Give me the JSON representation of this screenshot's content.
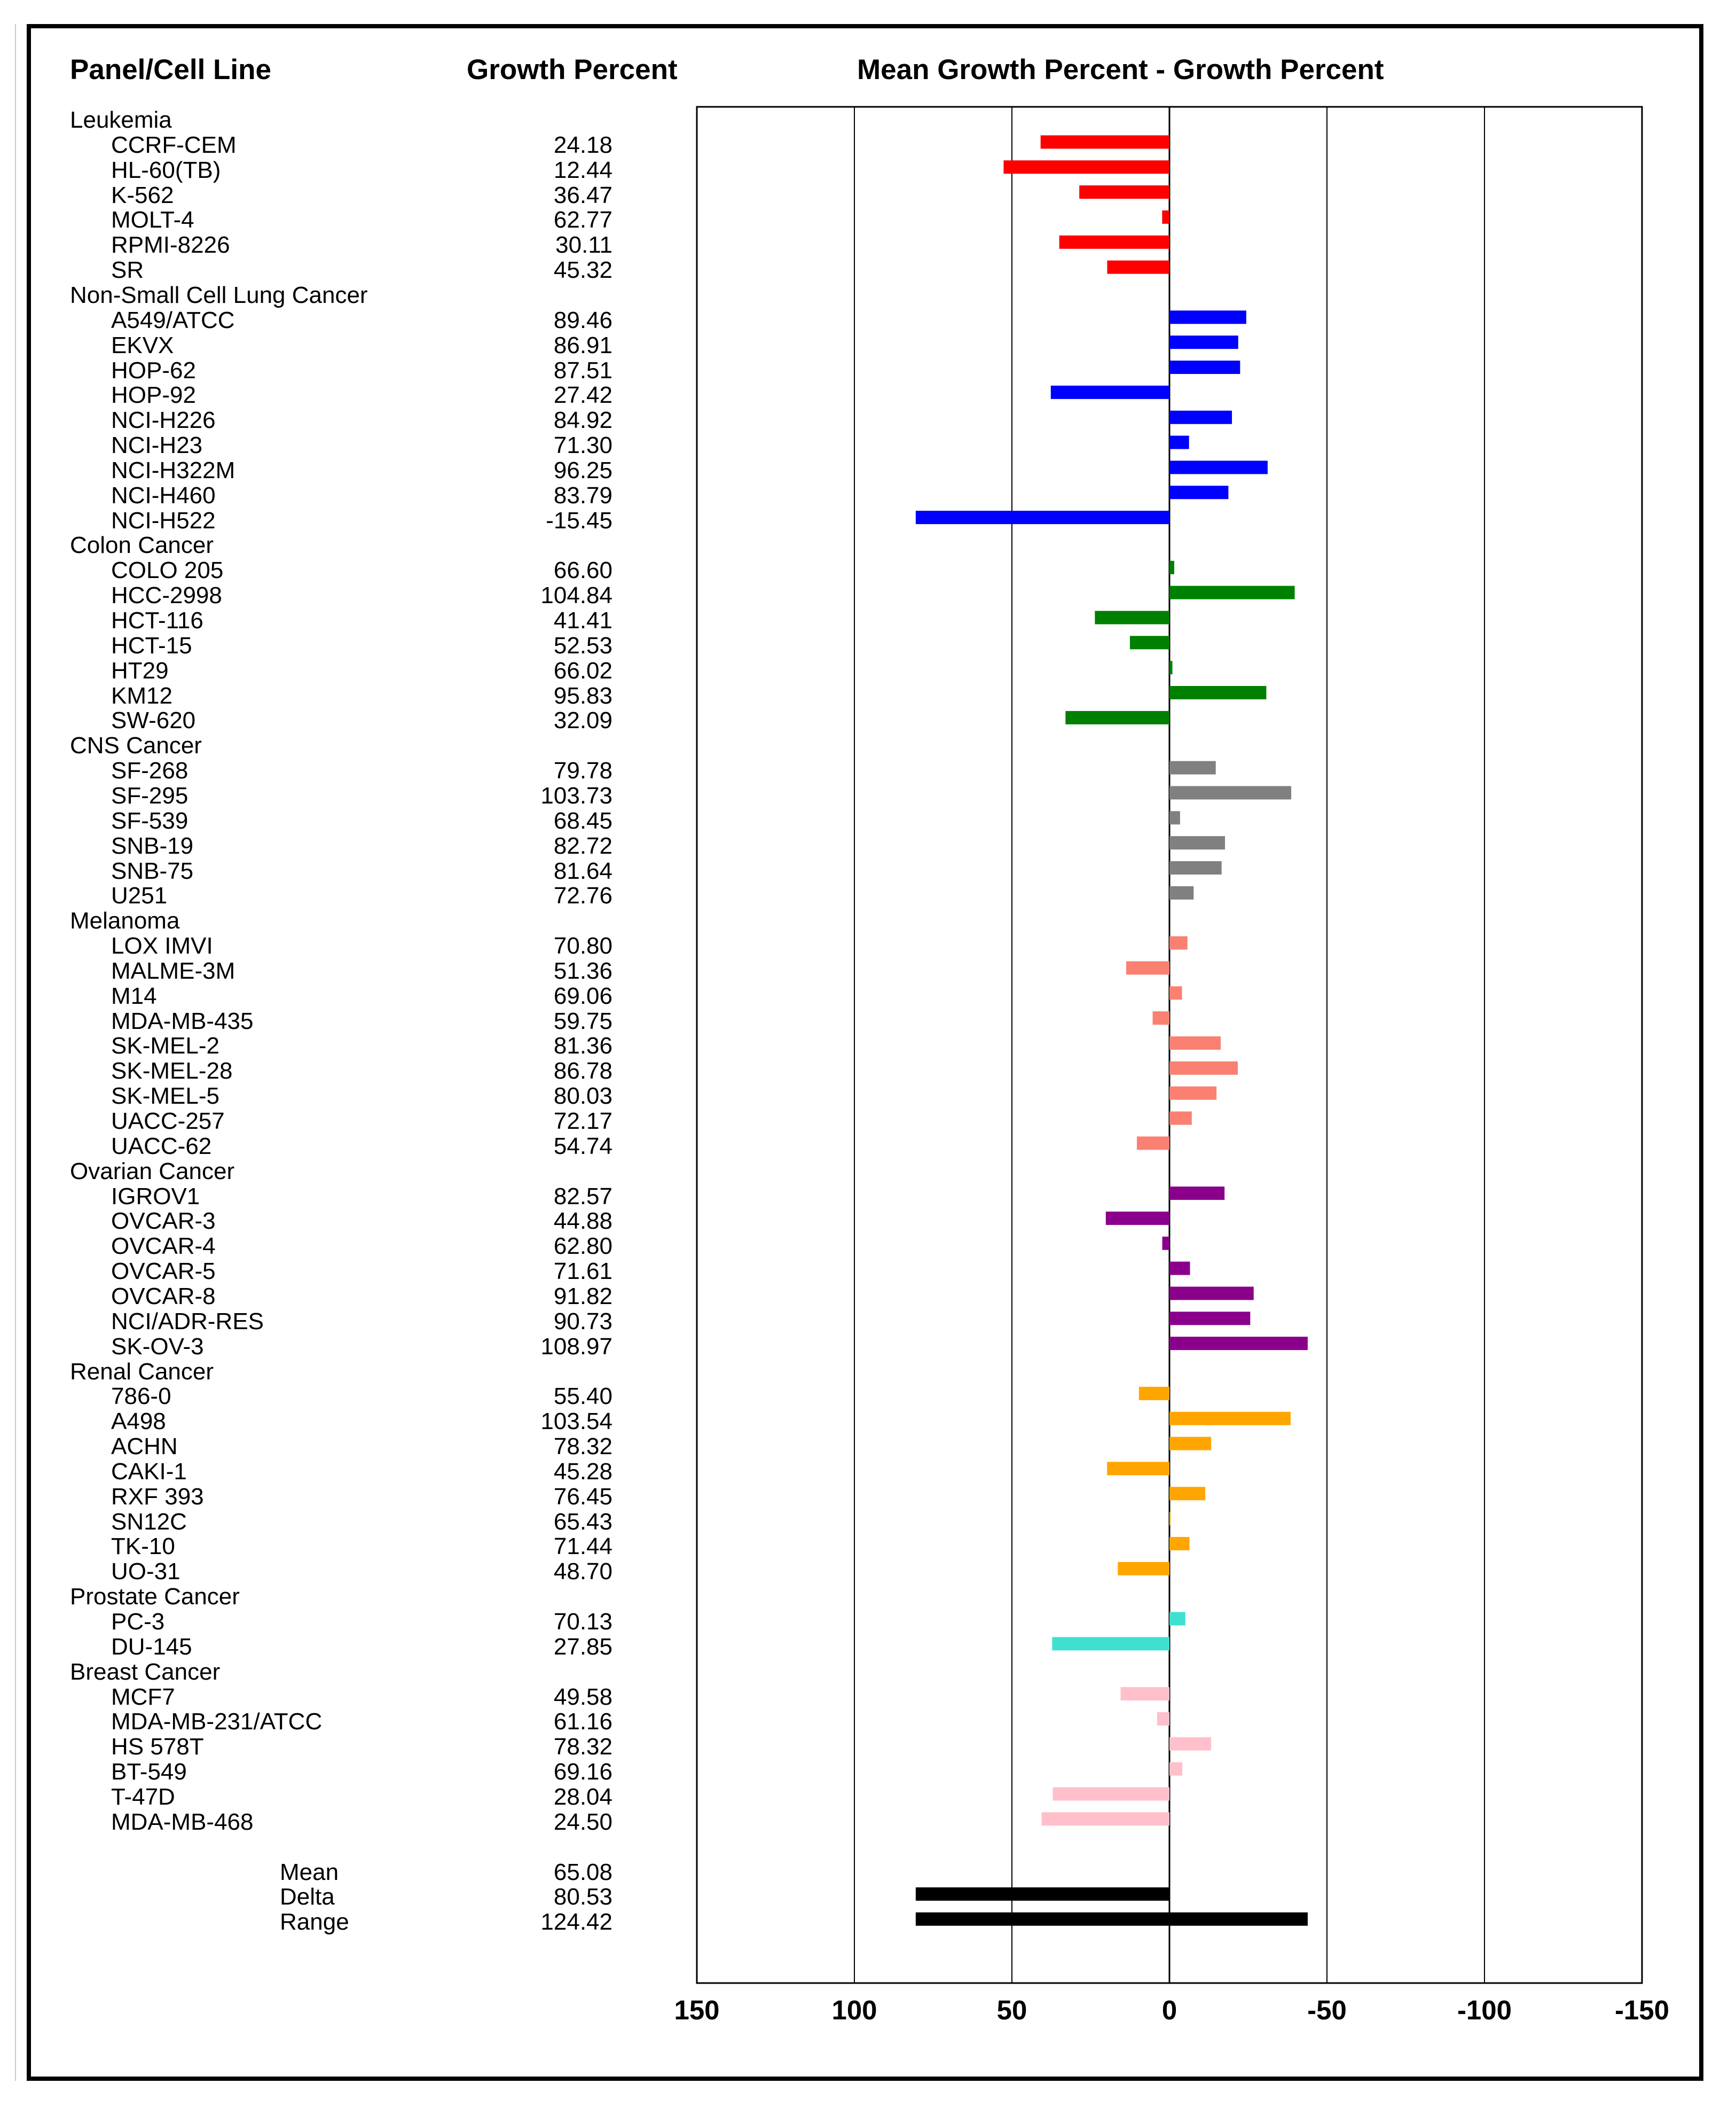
{
  "headers": {
    "panel": "Panel/Cell Line",
    "growth": "Growth Percent",
    "mean_minus": "Mean Growth Percent - Growth Percent"
  },
  "chart_data": {
    "type": "bar",
    "orientation": "horizontal",
    "title": "Mean Growth Percent - Growth Percent",
    "mean": 65.08,
    "xlim": [
      150,
      -150
    ],
    "x_ticks": [
      "150",
      "100",
      "50",
      "0",
      "-50",
      "-100",
      "-150"
    ],
    "grid": true,
    "panels": [
      {
        "name": "Leukemia",
        "color": "#ff0000",
        "lines": [
          {
            "name": "CCRF-CEM",
            "gp": "24.18",
            "value": 40.9
          },
          {
            "name": "HL-60(TB)",
            "gp": "12.44",
            "value": 52.64
          },
          {
            "name": "K-562",
            "gp": "36.47",
            "value": 28.61
          },
          {
            "name": "MOLT-4",
            "gp": "62.77",
            "value": 2.31
          },
          {
            "name": "RPMI-8226",
            "gp": "30.11",
            "value": 34.97
          },
          {
            "name": "SR",
            "gp": "45.32",
            "value": 19.76
          }
        ]
      },
      {
        "name": "Non-Small Cell Lung Cancer",
        "color": "#0000ff",
        "lines": [
          {
            "name": "A549/ATCC",
            "gp": "89.46",
            "value": -24.38
          },
          {
            "name": "EKVX",
            "gp": "86.91",
            "value": -21.83
          },
          {
            "name": "HOP-62",
            "gp": "87.51",
            "value": -22.43
          },
          {
            "name": "HOP-92",
            "gp": "27.42",
            "value": 37.66
          },
          {
            "name": "NCI-H226",
            "gp": "84.92",
            "value": -19.84
          },
          {
            "name": "NCI-H23",
            "gp": "71.30",
            "value": -6.22
          },
          {
            "name": "NCI-H322M",
            "gp": "96.25",
            "value": -31.17
          },
          {
            "name": "NCI-H460",
            "gp": "83.79",
            "value": -18.71
          },
          {
            "name": "NCI-H522",
            "gp": "-15.45",
            "value": 80.53
          }
        ]
      },
      {
        "name": "Colon Cancer",
        "color": "#008000",
        "lines": [
          {
            "name": "COLO 205",
            "gp": "66.60",
            "value": -1.52
          },
          {
            "name": "HCC-2998",
            "gp": "104.84",
            "value": -39.76
          },
          {
            "name": "HCT-116",
            "gp": "41.41",
            "value": 23.67
          },
          {
            "name": "HCT-15",
            "gp": "52.53",
            "value": 12.55
          },
          {
            "name": "HT29",
            "gp": "66.02",
            "value": -0.94
          },
          {
            "name": "KM12",
            "gp": "95.83",
            "value": -30.75
          },
          {
            "name": "SW-620",
            "gp": "32.09",
            "value": 32.99
          }
        ]
      },
      {
        "name": "CNS Cancer",
        "color": "#808080",
        "lines": [
          {
            "name": "SF-268",
            "gp": "79.78",
            "value": -14.7
          },
          {
            "name": "SF-295",
            "gp": "103.73",
            "value": -38.65
          },
          {
            "name": "SF-539",
            "gp": "68.45",
            "value": -3.37
          },
          {
            "name": "SNB-19",
            "gp": "82.72",
            "value": -17.64
          },
          {
            "name": "SNB-75",
            "gp": "81.64",
            "value": -16.56
          },
          {
            "name": "U251",
            "gp": "72.76",
            "value": -7.68
          }
        ]
      },
      {
        "name": "Melanoma",
        "color": "#fa8072",
        "lines": [
          {
            "name": "LOX IMVI",
            "gp": "70.80",
            "value": -5.72
          },
          {
            "name": "MALME-3M",
            "gp": "51.36",
            "value": 13.72
          },
          {
            "name": "M14",
            "gp": "69.06",
            "value": -3.98
          },
          {
            "name": "MDA-MB-435",
            "gp": "59.75",
            "value": 5.33
          },
          {
            "name": "SK-MEL-2",
            "gp": "81.36",
            "value": -16.28
          },
          {
            "name": "SK-MEL-28",
            "gp": "86.78",
            "value": -21.7
          },
          {
            "name": "SK-MEL-5",
            "gp": "80.03",
            "value": -14.95
          },
          {
            "name": "UACC-257",
            "gp": "72.17",
            "value": -7.09
          },
          {
            "name": "UACC-62",
            "gp": "54.74",
            "value": 10.34
          }
        ]
      },
      {
        "name": "Ovarian Cancer",
        "color": "#8b008b",
        "lines": [
          {
            "name": "IGROV1",
            "gp": "82.57",
            "value": -17.49
          },
          {
            "name": "OVCAR-3",
            "gp": "44.88",
            "value": 20.2
          },
          {
            "name": "OVCAR-4",
            "gp": "62.80",
            "value": 2.28
          },
          {
            "name": "OVCAR-5",
            "gp": "71.61",
            "value": -6.53
          },
          {
            "name": "OVCAR-8",
            "gp": "91.82",
            "value": -26.74
          },
          {
            "name": "NCI/ADR-RES",
            "gp": "90.73",
            "value": -25.65
          },
          {
            "name": "SK-OV-3",
            "gp": "108.97",
            "value": -43.89
          }
        ]
      },
      {
        "name": "Renal Cancer",
        "color": "#ffa500",
        "lines": [
          {
            "name": "786-0",
            "gp": "55.40",
            "value": 9.68
          },
          {
            "name": "A498",
            "gp": "103.54",
            "value": -38.46
          },
          {
            "name": "ACHN",
            "gp": "78.32",
            "value": -13.24
          },
          {
            "name": "CAKI-1",
            "gp": "45.28",
            "value": 19.8
          },
          {
            "name": "RXF 393",
            "gp": "76.45",
            "value": -11.37
          },
          {
            "name": "SN12C",
            "gp": "65.43",
            "value": -0.35
          },
          {
            "name": "TK-10",
            "gp": "71.44",
            "value": -6.36
          },
          {
            "name": "UO-31",
            "gp": "48.70",
            "value": 16.38
          }
        ]
      },
      {
        "name": "Prostate Cancer",
        "color": "#40e0d0",
        "lines": [
          {
            "name": "PC-3",
            "gp": "70.13",
            "value": -5.05
          },
          {
            "name": "DU-145",
            "gp": "27.85",
            "value": 37.23
          }
        ]
      },
      {
        "name": "Breast Cancer",
        "color": "#ffc0cb",
        "lines": [
          {
            "name": "MCF7",
            "gp": "49.58",
            "value": 15.5
          },
          {
            "name": "MDA-MB-231/ATCC",
            "gp": "61.16",
            "value": 3.92
          },
          {
            "name": "HS 578T",
            "gp": "78.32",
            "value": -13.24
          },
          {
            "name": "BT-549",
            "gp": "69.16",
            "value": -4.08
          },
          {
            "name": "T-47D",
            "gp": "28.04",
            "value": 37.04
          },
          {
            "name": "MDA-MB-468",
            "gp": "24.50",
            "value": 40.58
          }
        ]
      }
    ],
    "summary": [
      {
        "name": "Mean",
        "gp": "65.08",
        "value": null
      },
      {
        "name": "Delta",
        "gp": "80.53",
        "value": 80.53,
        "from": 0
      },
      {
        "name": "Range",
        "gp": "124.42",
        "value": 80.53,
        "from": -43.89
      }
    ],
    "summary_color": "#000000"
  }
}
